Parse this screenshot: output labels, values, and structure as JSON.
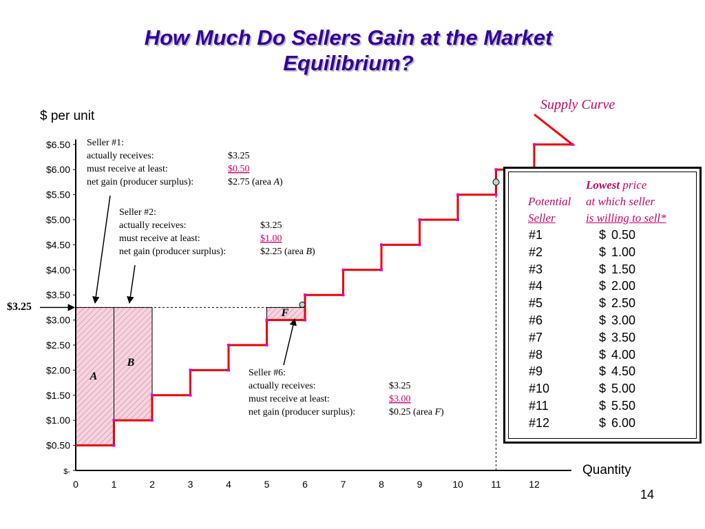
{
  "slide": {
    "title_line1": "How Much Do Sellers Gain at the Market",
    "title_line2": "Equilibrium?",
    "page_number": "14"
  },
  "chart_data": {
    "type": "line",
    "step": true,
    "title": "",
    "ylabel": "$ per unit",
    "xlabel": "Quantity",
    "curve_label": "Supply Curve",
    "x_ticks": [
      "0",
      "1",
      "2",
      "3",
      "4",
      "5",
      "6",
      "7",
      "8",
      "9",
      "10",
      "11",
      "12"
    ],
    "y_ticks": [
      {
        "v": 0,
        "label": "$-"
      },
      {
        "v": 0.5,
        "label": "$0.50"
      },
      {
        "v": 1,
        "label": "$1.00"
      },
      {
        "v": 1.5,
        "label": "$1.50"
      },
      {
        "v": 2,
        "label": "$2.00"
      },
      {
        "v": 2.5,
        "label": "$2.50"
      },
      {
        "v": 3,
        "label": "$3.00"
      },
      {
        "v": 3.5,
        "label": "$3.50"
      },
      {
        "v": 4,
        "label": "$4.00"
      },
      {
        "v": 4.5,
        "label": "$4.50"
      },
      {
        "v": 5,
        "label": "$5.00"
      },
      {
        "v": 5.5,
        "label": "$5.50"
      },
      {
        "v": 6,
        "label": "$6.00"
      },
      {
        "v": 6.5,
        "label": "$6.50"
      }
    ],
    "xlim": [
      0,
      13
    ],
    "ylim": [
      0,
      6.5
    ],
    "series": [
      {
        "name": "Supply Curve",
        "x": [
          0,
          1,
          2,
          3,
          4,
          5,
          6,
          7,
          8,
          9,
          10,
          11,
          12
        ],
        "values": [
          0.5,
          1,
          1.5,
          2,
          2.5,
          3,
          3.5,
          4,
          4.5,
          5,
          5.5,
          6,
          6.5
        ]
      }
    ],
    "price_line": {
      "value": 3.25,
      "label": "$3.25",
      "quantity": 11
    },
    "areas": [
      {
        "label": "A",
        "x0": 0,
        "x1": 1,
        "y0": 0.5,
        "y1": 3.25
      },
      {
        "label": "B",
        "x0": 1,
        "x1": 2,
        "y0": 1,
        "y1": 3.25
      },
      {
        "label": "F",
        "x0": 5,
        "x1": 6,
        "y0": 3,
        "y1": 3.25
      }
    ]
  },
  "callouts": [
    {
      "id": "seller1",
      "heading": "Seller #1:",
      "rows": [
        {
          "label": "actually receives:",
          "value": "$3.25",
          "underline": false
        },
        {
          "label": "must receive at least:",
          "value": "$0.50",
          "underline": true
        },
        {
          "label": "net gain (producer surplus):",
          "value": "$2.75 (area ",
          "area": "A",
          "close": ")"
        }
      ]
    },
    {
      "id": "seller2",
      "heading": "Seller #2:",
      "rows": [
        {
          "label": "actually receives:",
          "value": "$3.25",
          "underline": false
        },
        {
          "label": "must receive at least:",
          "value": "$1.00",
          "underline": true
        },
        {
          "label": "net gain (producer surplus):",
          "value": "$2.25 (area ",
          "area": "B",
          "close": ")"
        }
      ]
    },
    {
      "id": "seller6",
      "heading": "Seller #6:",
      "rows": [
        {
          "label": "actually receives:",
          "value": "$3.25",
          "underline": false
        },
        {
          "label": "must receive at least:",
          "value": "$3.00",
          "underline": true
        },
        {
          "label": "net gain (producer surplus):",
          "value": "$0.25 (area ",
          "area": "F",
          "close": ")"
        }
      ]
    }
  ],
  "table": {
    "header_lowest": "Lowest",
    "header_price": " price",
    "header_potential": "Potential",
    "header_at_which": "at which seller",
    "header_seller": "Seller",
    "header_willing": "is willing to sell*",
    "rows": [
      {
        "seller": "#1",
        "dollar": "$",
        "price": "0.50"
      },
      {
        "seller": "#2",
        "dollar": "$",
        "price": "1.00"
      },
      {
        "seller": "#3",
        "dollar": "$",
        "price": "1.50"
      },
      {
        "seller": "#4",
        "dollar": "$",
        "price": "2.00"
      },
      {
        "seller": "#5",
        "dollar": "$",
        "price": "2.50"
      },
      {
        "seller": "#6",
        "dollar": "$",
        "price": "3.00"
      },
      {
        "seller": "#7",
        "dollar": "$",
        "price": "3.50"
      },
      {
        "seller": "#8",
        "dollar": "$",
        "price": "4.00"
      },
      {
        "seller": "#9",
        "dollar": "$",
        "price": "4.50"
      },
      {
        "seller": "#10",
        "dollar": "$",
        "price": "5.00"
      },
      {
        "seller": "#11",
        "dollar": "$",
        "price": "5.50"
      },
      {
        "seller": "#12",
        "dollar": "$",
        "price": "6.00"
      }
    ]
  },
  "colors": {
    "title": "#330099",
    "curve": "#ee0000",
    "vertex": "#dd00dd",
    "accent": "#cc0066",
    "area_fill": "#f3d4df",
    "area_hatch": "#e07a9c",
    "marker": "#b8d8d8"
  }
}
